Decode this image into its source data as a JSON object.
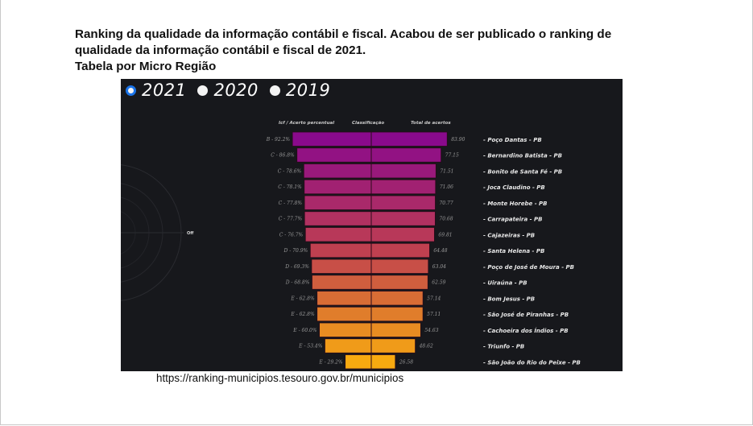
{
  "heading": {
    "line1": "Ranking da qualidade da informação contábil e fiscal. Acabou de ser publicado o ranking de",
    "line2": "qualidade da informação contábil e fiscal de 2021.",
    "line3": "Tabela por Micro Região"
  },
  "year_tabs": [
    {
      "label": "2021",
      "selected": true
    },
    {
      "label": "2020",
      "selected": false
    },
    {
      "label": "2019",
      "selected": false
    }
  ],
  "column_headers": {
    "left": "Icf / Acerto percentual",
    "center": "Classificação",
    "right": "Total de acertos"
  },
  "radar_label": "Off",
  "source_url": "https://ranking-municipios.tesouro.gov.br/municipios",
  "colors": {
    "panel_bg": "#17181c",
    "radio_selected": "#1a73e8",
    "gradient_top": "#8a0a8c",
    "gradient_bottom": "#f8aa10"
  },
  "chart_data": {
    "type": "bar",
    "orientation": "horizontal-funnel",
    "title": "",
    "year": "2021",
    "categories": [
      "- Poço Dantas - PB",
      "- Bernardino Batista - PB",
      "- Bonito de Santa Fé - PB",
      "- Joca Claudino - PB",
      "- Monte Horebe - PB",
      "- Carrapateira - PB",
      "- Cajazeiras - PB",
      "- Santa Helena - PB",
      "- Poço de José de Moura - PB",
      "- Uiraúna - PB",
      "- Bom Jesus - PB",
      "- São José de Piranhas - PB",
      "- Cachoeira dos Índios - PB",
      "- Triunfo - PB",
      "- São João do Rio do Peixe - PB"
    ],
    "icf_labels": [
      "B - 92.2%",
      "C - 86.8%",
      "C - 78.6%",
      "C - 78.1%",
      "C - 77.8%",
      "C - 77.7%",
      "C - 76.7%",
      "D - 70.9%",
      "D - 69.3%",
      "D - 68.8%",
      "E - 62.8%",
      "E - 62.8%",
      "E - 60.0%",
      "E - 53.4%",
      "E - 29.2%"
    ],
    "classes": [
      "B",
      "C",
      "C",
      "C",
      "C",
      "C",
      "C",
      "D",
      "D",
      "D",
      "E",
      "E",
      "E",
      "E",
      "E"
    ],
    "acerto_percentual": [
      92.2,
      86.8,
      78.6,
      78.1,
      77.8,
      77.7,
      76.7,
      70.9,
      69.3,
      68.8,
      62.8,
      62.8,
      60.0,
      53.4,
      29.2
    ],
    "total_acertos": [
      83.9,
      77.15,
      71.51,
      71.06,
      70.77,
      70.68,
      69.81,
      64.48,
      63.04,
      62.59,
      57.14,
      57.11,
      54.63,
      48.62,
      26.58
    ],
    "total_acertos_labels": [
      "83.90",
      "77.15",
      "71.51",
      "71.06",
      "70.77",
      "70.68",
      "69.81",
      "64.48",
      "63.04",
      "62.59",
      "57.14",
      "57.11",
      "54.63",
      "48.62",
      "26.58"
    ],
    "xlabel": "",
    "ylabel": "",
    "grid": false,
    "legend": "none"
  }
}
